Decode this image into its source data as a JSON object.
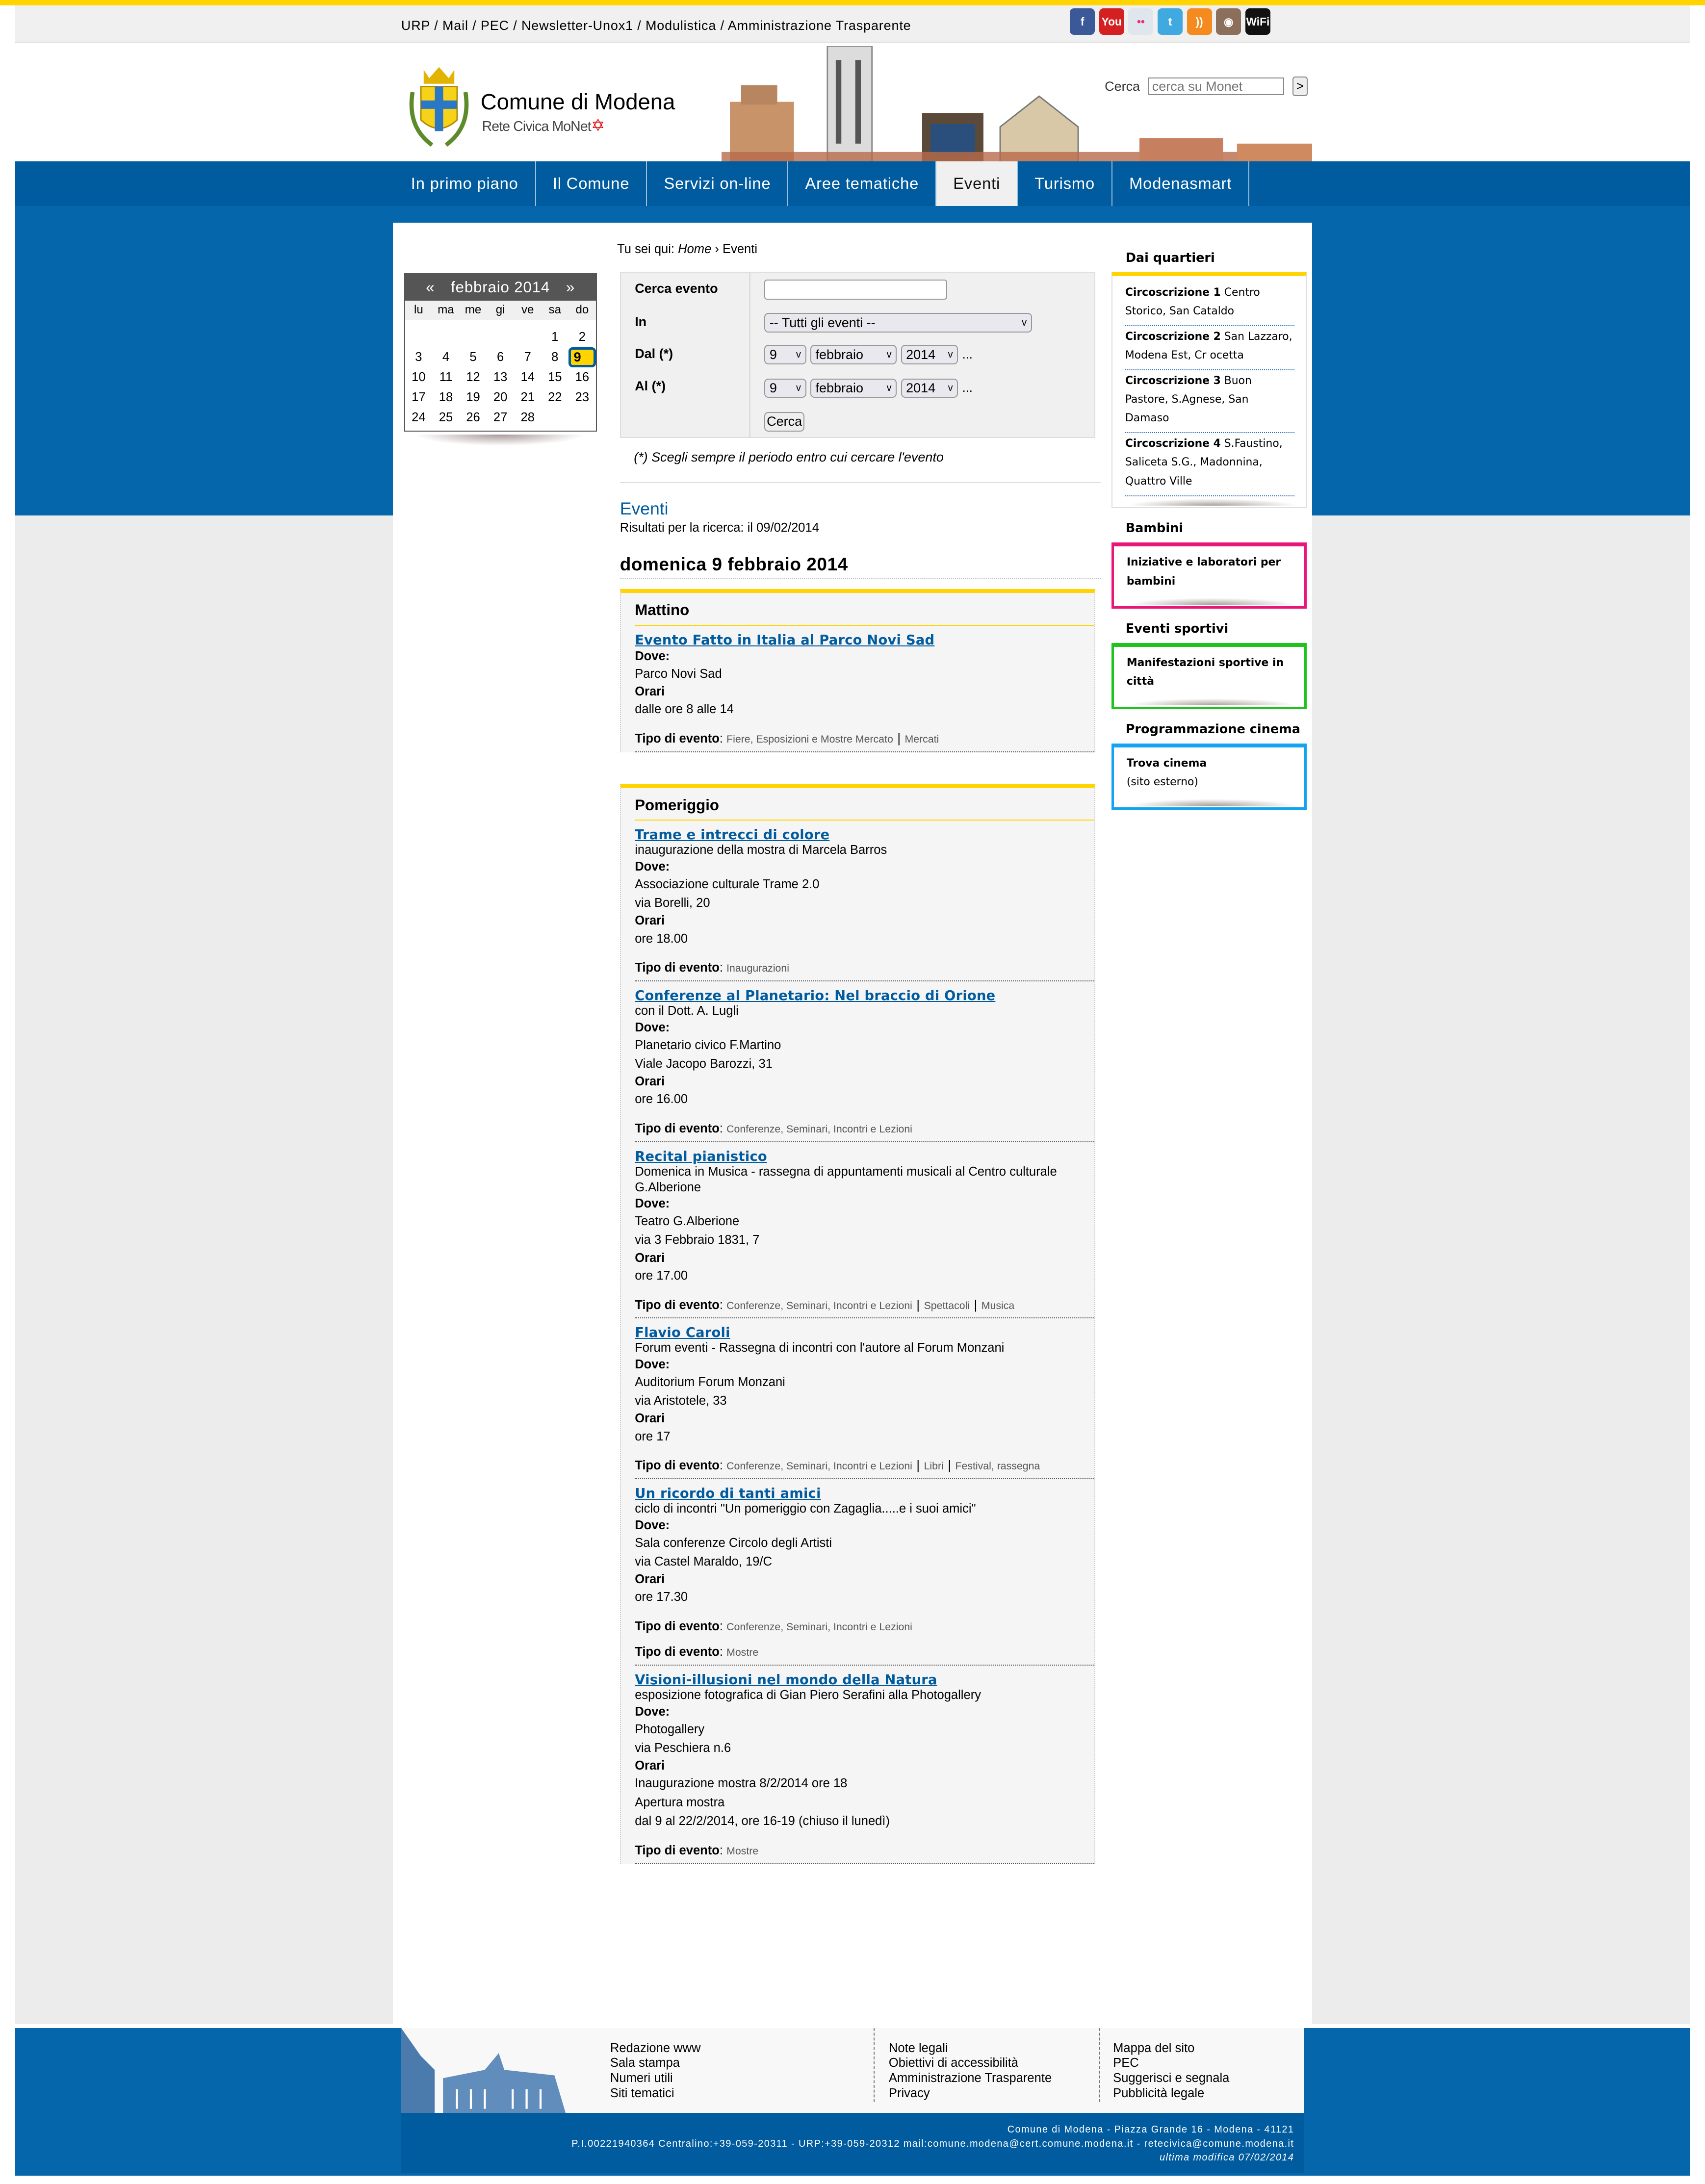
{
  "colors": {
    "brand_blue": "#005b9f",
    "accent_yellow": "#ffd400",
    "bambini": "#e8157a",
    "sport": "#1ec31e",
    "cinema": "#13a3f0"
  },
  "top_links": [
    "URP",
    "Mail",
    "PEC",
    "Newsletter-Unox1",
    "Modulistica",
    "Amministrazione Trasparente"
  ],
  "social_icons": [
    {
      "icon": "facebook-icon",
      "label": "f",
      "color": "#3b5998"
    },
    {
      "icon": "youtube-icon",
      "label": "You",
      "color": "#d42020"
    },
    {
      "icon": "flickr-icon",
      "label": "••",
      "color": "#dfe6ee"
    },
    {
      "icon": "twitter-icon",
      "label": "t",
      "color": "#3fa9e0"
    },
    {
      "icon": "rss-icon",
      "label": "))",
      "color": "#f58b1f"
    },
    {
      "icon": "instagram-icon",
      "label": "◉",
      "color": "#8b6f5a"
    },
    {
      "icon": "wifi-icon",
      "label": "WiFi",
      "color": "#111"
    }
  ],
  "logo": {
    "title": "Comune di Modena",
    "subtitle": "Rete Civica MoNet"
  },
  "search": {
    "label": "Cerca",
    "placeholder": "cerca su Monet",
    "button": ">"
  },
  "nav": [
    {
      "label": "In primo piano"
    },
    {
      "label": "Il Comune"
    },
    {
      "label": "Servizi on-line"
    },
    {
      "label": "Aree tematiche"
    },
    {
      "label": "Eventi",
      "active": true
    },
    {
      "label": "Turismo"
    },
    {
      "label": "Modenasmart"
    }
  ],
  "calendar": {
    "prev": "«",
    "title": "febbraio 2014",
    "next": "»",
    "days": [
      "lu",
      "ma",
      "me",
      "gi",
      "ve",
      "sa",
      "do"
    ],
    "cells": [
      "",
      "",
      "",
      "",
      "",
      "1",
      "2",
      "3",
      "4",
      "5",
      "6",
      "7",
      "8",
      "9",
      "10",
      "11",
      "12",
      "13",
      "14",
      "15",
      "16",
      "17",
      "18",
      "19",
      "20",
      "21",
      "22",
      "23",
      "24",
      "25",
      "26",
      "27",
      "28"
    ],
    "selected": "9"
  },
  "breadcrumb": {
    "prefix": "Tu sei qui:",
    "home": "Home",
    "sep": "›",
    "current": "Eventi"
  },
  "form": {
    "cerca_label": "Cerca evento",
    "cerca_value": "",
    "in_label": "In",
    "in_value": "-- Tutti gli eventi --",
    "dal_label": "Dal (*)",
    "al_label": "Al (*)",
    "day": "9",
    "month": "febbraio",
    "year": "2014",
    "ellipsis": "...",
    "submit": "Cerca",
    "note": "(*) Scegli sempre il periodo entro cui cercare l'evento"
  },
  "results": {
    "title": "Eventi",
    "subtitle": "Risultati per la ricerca: il 09/02/2014",
    "day": "domenica 9 febbraio 2014"
  },
  "labels": {
    "dove": "Dove",
    "orari": "Orari",
    "tipo": "Tipo di evento"
  },
  "periods": [
    {
      "name": "Mattino",
      "events": [
        {
          "title": "Evento Fatto in Italia al Parco Novi Sad",
          "subtitle": "",
          "dove": [
            "Parco Novi Sad"
          ],
          "orari": [
            "dalle ore 8 alle 14"
          ],
          "tipi": [
            [
              "Fiere, Esposizioni e Mostre Mercato",
              "Mercati"
            ]
          ]
        }
      ]
    },
    {
      "name": "Pomeriggio",
      "events": [
        {
          "title": "Trame e intrecci di colore",
          "subtitle": "inaugurazione della mostra di Marcela Barros",
          "dove": [
            "Associazione culturale Trame 2.0",
            "via Borelli, 20"
          ],
          "orari": [
            "ore 18.00"
          ],
          "tipi": [
            [
              "Inaugurazioni"
            ]
          ]
        },
        {
          "title": "Conferenze al Planetario: Nel braccio di Orione",
          "subtitle": "con il Dott. A. Lugli",
          "dove": [
            "Planetario civico F.Martino",
            "Viale Jacopo Barozzi, 31"
          ],
          "orari": [
            "ore 16.00"
          ],
          "tipi": [
            [
              "Conferenze, Seminari, Incontri e Lezioni"
            ]
          ]
        },
        {
          "title": "Recital pianistico",
          "subtitle": "Domenica in Musica - rassegna di appuntamenti musicali al Centro culturale G.Alberione",
          "dove": [
            "Teatro G.Alberione",
            "via 3 Febbraio 1831, 7"
          ],
          "orari": [
            "ore 17.00"
          ],
          "tipi": [
            [
              "Conferenze, Seminari, Incontri e Lezioni",
              "Spettacoli",
              "Musica"
            ]
          ]
        },
        {
          "title": "Flavio Caroli",
          "subtitle": "Forum eventi - Rassegna di incontri con l'autore al Forum Monzani",
          "dove": [
            "Auditorium Forum Monzani",
            "via Aristotele, 33"
          ],
          "orari": [
            "ore 17"
          ],
          "tipi": [
            [
              "Conferenze, Seminari, Incontri e Lezioni",
              "Libri",
              "Festival, rassegna"
            ]
          ]
        },
        {
          "title": "Un ricordo di tanti amici",
          "subtitle": "ciclo di incontri \"Un pomeriggio con Zagaglia.....e i suoi amici\"",
          "dove": [
            "Sala conferenze Circolo degli Artisti",
            "via Castel Maraldo, 19/C"
          ],
          "orari": [
            "ore 17.30"
          ],
          "tipi": [
            [
              "Conferenze, Seminari, Incontri e Lezioni"
            ],
            [
              "Mostre"
            ]
          ]
        },
        {
          "title": "Visioni-illusioni nel mondo della Natura",
          "subtitle": "esposizione fotografica di Gian Piero Serafini alla Photogallery",
          "dove": [
            "Photogallery",
            "via Peschiera n.6"
          ],
          "orari": [
            "Inaugurazione mostra 8/2/2014 ore 18",
            "Apertura mostra",
            "dal 9 al 22/2/2014, ore 16-19 (chiuso il lunedì)"
          ],
          "tipi": [
            [
              "Mostre"
            ]
          ]
        }
      ]
    }
  ],
  "sidebar": [
    {
      "title": "Dai quartieri",
      "color": "#ffd400",
      "items": [
        {
          "bold": "Circoscrizione 1",
          "text": " Centro Storico, San Cataldo"
        },
        {
          "bold": "Circoscrizione 2",
          "text": " San Lazzaro, Modena Est, Cr ocetta"
        },
        {
          "bold": "Circoscrizione 3",
          "text": " Buon Pastore, S.Agnese, San Damaso"
        },
        {
          "bold": "Circoscrizione 4",
          "text": " S.Faustino, Saliceta S.G., Madonnina, Quattro Ville"
        }
      ]
    },
    {
      "title": "Bambini",
      "color": "#e8157a",
      "items": [
        {
          "bold": "Iniziative e laboratori per bambini",
          "text": ""
        }
      ]
    },
    {
      "title": "Eventi sportivi",
      "color": "#1ec31e",
      "items": [
        {
          "bold": "Manifestazioni sportive in città",
          "text": ""
        }
      ]
    },
    {
      "title": "Programmazione cinema",
      "color": "#13a3f0",
      "items": [
        {
          "bold": "Trova cinema",
          "text": "(sito esterno)"
        }
      ]
    }
  ],
  "footer": {
    "col1": [
      "Redazione www",
      "Sala stampa",
      "Numeri utili",
      "Siti tematici"
    ],
    "col2": [
      "Note legali",
      "Obiettivi di accessibilità",
      "Amministrazione Trasparente",
      "Privacy"
    ],
    "col3": [
      "Mappa del sito",
      "PEC",
      "Suggerisci e segnala",
      "Pubblicità legale"
    ],
    "address": "Comune di Modena - Piazza Grande 16 - Modena - 41121",
    "contacts": "P.I.00221940364 Centralino:+39-059-20311 - URP:+39-059-20312 mail:comune.modena@cert.comune.modena.it - retecivica@comune.modena.it",
    "updated": "ultima modifica 07/02/2014"
  }
}
